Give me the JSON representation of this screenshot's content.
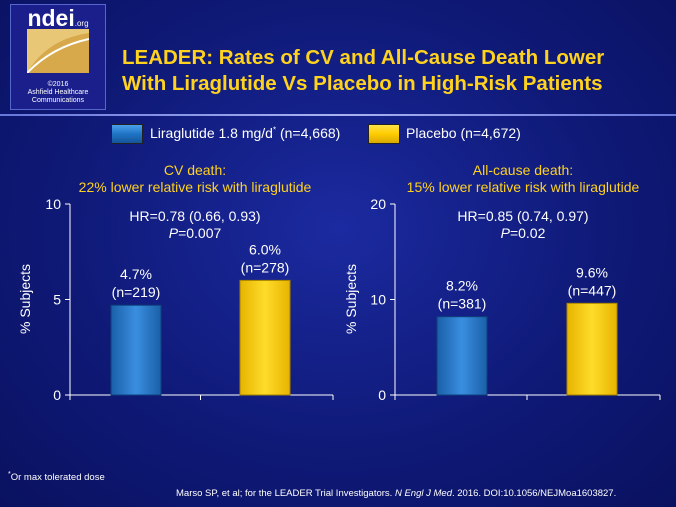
{
  "logo": {
    "brand": "ndei",
    "brand_suffix": ".org",
    "copyright_line1": "©2016",
    "copyright_line2": "Ashfield Healthcare",
    "copyright_line3": "Communications"
  },
  "title_line1": "LEADER: Rates of CV and All-Cause Death Lower",
  "title_line2": "With Liraglutide Vs Placebo in High-Risk Patients",
  "colors": {
    "liraglutide": "#1f74c6",
    "placebo": "#ffcc00",
    "title": "#ffd21e",
    "background": "#0f1a78"
  },
  "legend": {
    "liraglutide_label": "Liraglutide 1.8 mg/d",
    "liraglutide_sup": "*",
    "liraglutide_n": " (n=4,668)",
    "placebo_label": "Placebo (n=4,672)"
  },
  "chart_data": [
    {
      "type": "bar",
      "title_line1": "CV death:",
      "title_line2": "22% lower relative risk with liraglutide",
      "hr_line1": "HR=0.78 (0.66, 0.93)",
      "p_label": "P",
      "p_value": "=0.007",
      "ylabel": "% Subjects",
      "ylim": [
        0,
        10
      ],
      "yticks": [
        "0",
        "5",
        "10"
      ],
      "categories": [
        "Liraglutide",
        "Placebo"
      ],
      "values": [
        4.7,
        6.0
      ],
      "value_labels": [
        "4.7%",
        "6.0%"
      ],
      "n_labels": [
        "(n=219)",
        "(n=278)"
      ]
    },
    {
      "type": "bar",
      "title_line1": "All-cause death:",
      "title_line2": "15% lower relative risk with liraglutide",
      "hr_line1": "HR=0.85 (0.74, 0.97)",
      "p_label": "P",
      "p_value": "=0.02",
      "ylabel": "% Subjects",
      "ylim": [
        0,
        20
      ],
      "yticks": [
        "0",
        "10",
        "20"
      ],
      "categories": [
        "Liraglutide",
        "Placebo"
      ],
      "values": [
        8.2,
        9.6
      ],
      "value_labels": [
        "8.2%",
        "9.6%"
      ],
      "n_labels": [
        "(n=381)",
        "(n=447)"
      ]
    }
  ],
  "footnote_sup": "*",
  "footnote": "Or max tolerated dose",
  "source_prefix": "Marso SP, et al; for the LEADER Trial Investigators. ",
  "source_journal": "N Engl J Med",
  "source_suffix": ". 2016. DOI:10.1056/NEJMoa1603827."
}
